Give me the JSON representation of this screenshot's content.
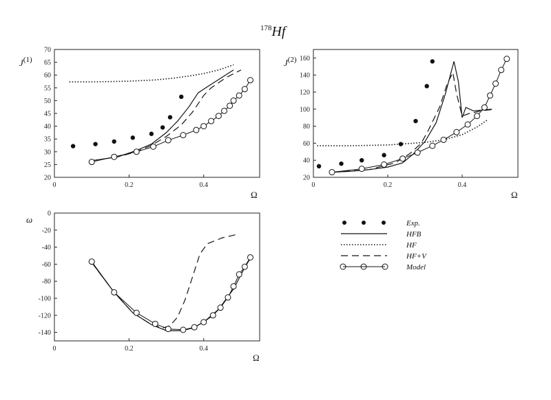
{
  "figure": {
    "title_sup": "178",
    "title_main": "Hf"
  },
  "legend": {
    "exp": "Exp.",
    "hfb": "HFB",
    "hf": "HF",
    "hfv": "HF+V",
    "model": "Model"
  },
  "chart_data": [
    {
      "type": "line",
      "ylabel_main": "J",
      "ylabel_sup": "(1)",
      "xlabel": "Ω",
      "xlim": [
        0,
        0.55
      ],
      "ylim": [
        20,
        70
      ],
      "xticks": [
        "0",
        "0.2",
        "0.4"
      ],
      "yticks": [
        "20",
        "25",
        "30",
        "35",
        "40",
        "45",
        "50",
        "55",
        "60",
        "65",
        "70"
      ],
      "series": [
        {
          "name": "Exp.",
          "style": "points",
          "x": [
            0.05,
            0.11,
            0.16,
            0.21,
            0.26,
            0.29,
            0.31,
            0.34
          ],
          "y": [
            32.2,
            33.0,
            34.0,
            35.5,
            37.0,
            39.5,
            43.5,
            51.5
          ]
        },
        {
          "name": "HFB",
          "style": "solid",
          "x": [
            0.1,
            0.17,
            0.22,
            0.26,
            0.3,
            0.33,
            0.36,
            0.385,
            0.4,
            0.48
          ],
          "y": [
            26.5,
            28.0,
            30.5,
            33.0,
            37.5,
            42.0,
            47.5,
            53.0,
            54.5,
            62.0
          ]
        },
        {
          "name": "HF",
          "style": "dotted",
          "x": [
            0.04,
            0.1,
            0.2,
            0.27,
            0.32,
            0.36,
            0.4,
            0.44,
            0.48
          ],
          "y": [
            57.3,
            57.3,
            57.6,
            58.1,
            58.8,
            59.6,
            60.6,
            62.0,
            64.0
          ]
        },
        {
          "name": "HF+V",
          "style": "dashed",
          "x": [
            0.1,
            0.17,
            0.22,
            0.26,
            0.3,
            0.34,
            0.37,
            0.4,
            0.42,
            0.46,
            0.5
          ],
          "y": [
            26.5,
            28.0,
            30.0,
            32.5,
            36.0,
            40.5,
            45.5,
            52.0,
            55.0,
            59.0,
            62.0
          ]
        },
        {
          "name": "Model",
          "style": "circles",
          "x": [
            0.1,
            0.16,
            0.22,
            0.265,
            0.305,
            0.345,
            0.38,
            0.4,
            0.42,
            0.44,
            0.455,
            0.47,
            0.48,
            0.495,
            0.51,
            0.525
          ],
          "y": [
            26.0,
            28.0,
            30.0,
            32.0,
            34.5,
            36.5,
            38.5,
            40.0,
            42.0,
            44.0,
            46.0,
            48.0,
            50.0,
            52.0,
            54.5,
            58.0
          ]
        }
      ]
    },
    {
      "type": "line",
      "ylabel_main": "J",
      "ylabel_sup": "(2)",
      "xlabel": "Ω",
      "xlim": [
        0,
        0.55
      ],
      "ylim": [
        20,
        170
      ],
      "xticks": [
        "0",
        "0.2",
        "0.4"
      ],
      "yticks": [
        "20",
        "40",
        "60",
        "80",
        "100",
        "120",
        "140",
        "160"
      ],
      "series": [
        {
          "name": "Exp.",
          "style": "points",
          "x": [
            0.015,
            0.075,
            0.13,
            0.19,
            0.235,
            0.275,
            0.305,
            0.32
          ],
          "y": [
            33,
            36,
            40,
            46,
            59,
            86,
            127,
            156
          ]
        },
        {
          "name": "HFB",
          "style": "solid",
          "x": [
            0.05,
            0.1,
            0.15,
            0.2,
            0.24,
            0.27,
            0.3,
            0.33,
            0.355,
            0.378,
            0.39,
            0.4,
            0.41,
            0.43,
            0.48
          ],
          "y": [
            26,
            27,
            29,
            32,
            37,
            48,
            62,
            84,
            118,
            156,
            132,
            90,
            102,
            98,
            100
          ]
        },
        {
          "name": "HF",
          "style": "dotted",
          "x": [
            0.01,
            0.1,
            0.2,
            0.3,
            0.35,
            0.4,
            0.44,
            0.47
          ],
          "y": [
            57,
            57,
            58,
            61,
            64,
            70,
            79,
            88
          ]
        },
        {
          "name": "HF+V",
          "style": "dashed",
          "x": [
            0.05,
            0.15,
            0.22,
            0.26,
            0.29,
            0.31,
            0.34,
            0.36,
            0.375,
            0.385,
            0.4,
            0.42,
            0.45,
            0.49
          ],
          "y": [
            26,
            29,
            37,
            48,
            60,
            76,
            103,
            130,
            143,
            118,
            92,
            95,
            98,
            100
          ]
        },
        {
          "name": "Model",
          "style": "circles",
          "x": [
            0.05,
            0.13,
            0.19,
            0.24,
            0.28,
            0.32,
            0.35,
            0.385,
            0.415,
            0.44,
            0.46,
            0.475,
            0.49,
            0.505,
            0.52
          ],
          "y": [
            26,
            30,
            35,
            42,
            49,
            57,
            64,
            73,
            82,
            92,
            102,
            116,
            130,
            146,
            159
          ]
        }
      ]
    },
    {
      "type": "line",
      "ylabel_main": "ω",
      "ylabel_sup": "",
      "xlabel": "Ω",
      "xlim": [
        0,
        0.55
      ],
      "ylim": [
        -150,
        0
      ],
      "xticks": [
        "0",
        "0.2",
        "0.4"
      ],
      "yticks": [
        "0",
        "-20",
        "-40",
        "-60",
        "-80",
        "-100",
        "-120",
        "-140"
      ],
      "series": [
        {
          "name": "HFB",
          "style": "solid",
          "x": [
            0.1,
            0.16,
            0.21,
            0.26,
            0.3,
            0.34,
            0.37,
            0.4,
            0.44,
            0.48,
            0.51,
            0.525
          ],
          "y": [
            -58,
            -93,
            -117,
            -131,
            -138,
            -138,
            -135,
            -128,
            -113,
            -89,
            -64,
            -53
          ]
        },
        {
          "name": "HF+V",
          "style": "dashed",
          "x": [
            0.1,
            0.16,
            0.21,
            0.26,
            0.29,
            0.31,
            0.33,
            0.35,
            0.37,
            0.39,
            0.41,
            0.45,
            0.49
          ],
          "y": [
            -58,
            -93,
            -117,
            -131,
            -135,
            -132,
            -122,
            -102,
            -75,
            -48,
            -36,
            -29,
            -25
          ]
        },
        {
          "name": "Model",
          "style": "circles",
          "x": [
            0.1,
            0.16,
            0.22,
            0.27,
            0.305,
            0.345,
            0.375,
            0.4,
            0.425,
            0.445,
            0.465,
            0.48,
            0.495,
            0.51,
            0.525
          ],
          "y": [
            -57,
            -93,
            -117,
            -130,
            -136,
            -137,
            -134,
            -128,
            -120,
            -111,
            -99,
            -86,
            -72,
            -63,
            -52
          ]
        }
      ]
    }
  ]
}
